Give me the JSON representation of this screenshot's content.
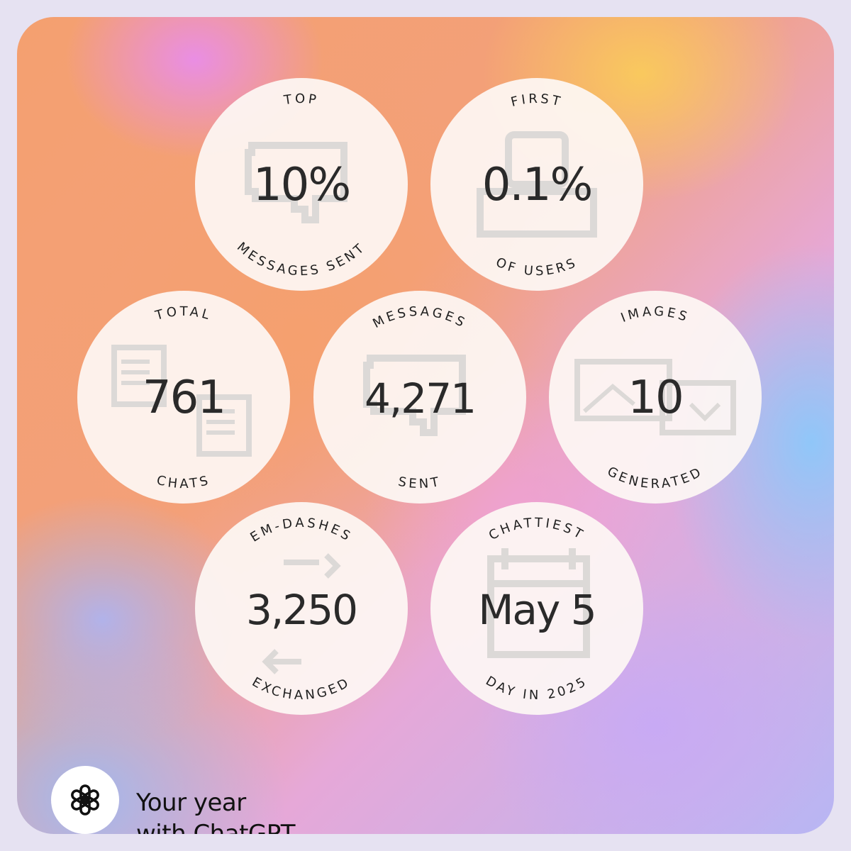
{
  "stats": [
    {
      "top": "TOP",
      "value": "10%",
      "bottom": "MESSAGES SENT",
      "icon": "chat-bubble-icon"
    },
    {
      "top": "FIRST",
      "value": "0.1%",
      "bottom": "OF USERS",
      "icon": "user-icon"
    },
    {
      "top": "TOTAL",
      "value": "761",
      "bottom": "CHATS",
      "icon": "documents-icon"
    },
    {
      "top": "MESSAGES",
      "value": "4,271",
      "bottom": "SENT",
      "icon": "chat-bubble-icon"
    },
    {
      "top": "IMAGES",
      "value": "10",
      "bottom": "GENERATED",
      "icon": "image-icon"
    },
    {
      "top": "EM-DASHES",
      "value": "3,250",
      "bottom": "EXCHANGED",
      "icon": "arrows-icon"
    },
    {
      "top": "CHATTIEST",
      "value": "May 5",
      "bottom": "DAY IN 2025",
      "icon": "calendar-icon"
    }
  ],
  "brand": {
    "line1": "Your year",
    "line2": "with ChatGPT",
    "logo_icon": "openai-logo-icon"
  },
  "colors": {
    "circle_fill": "#fdf7f4",
    "text": "#2a2a2a",
    "icon_gray": "#d9d6d4"
  }
}
